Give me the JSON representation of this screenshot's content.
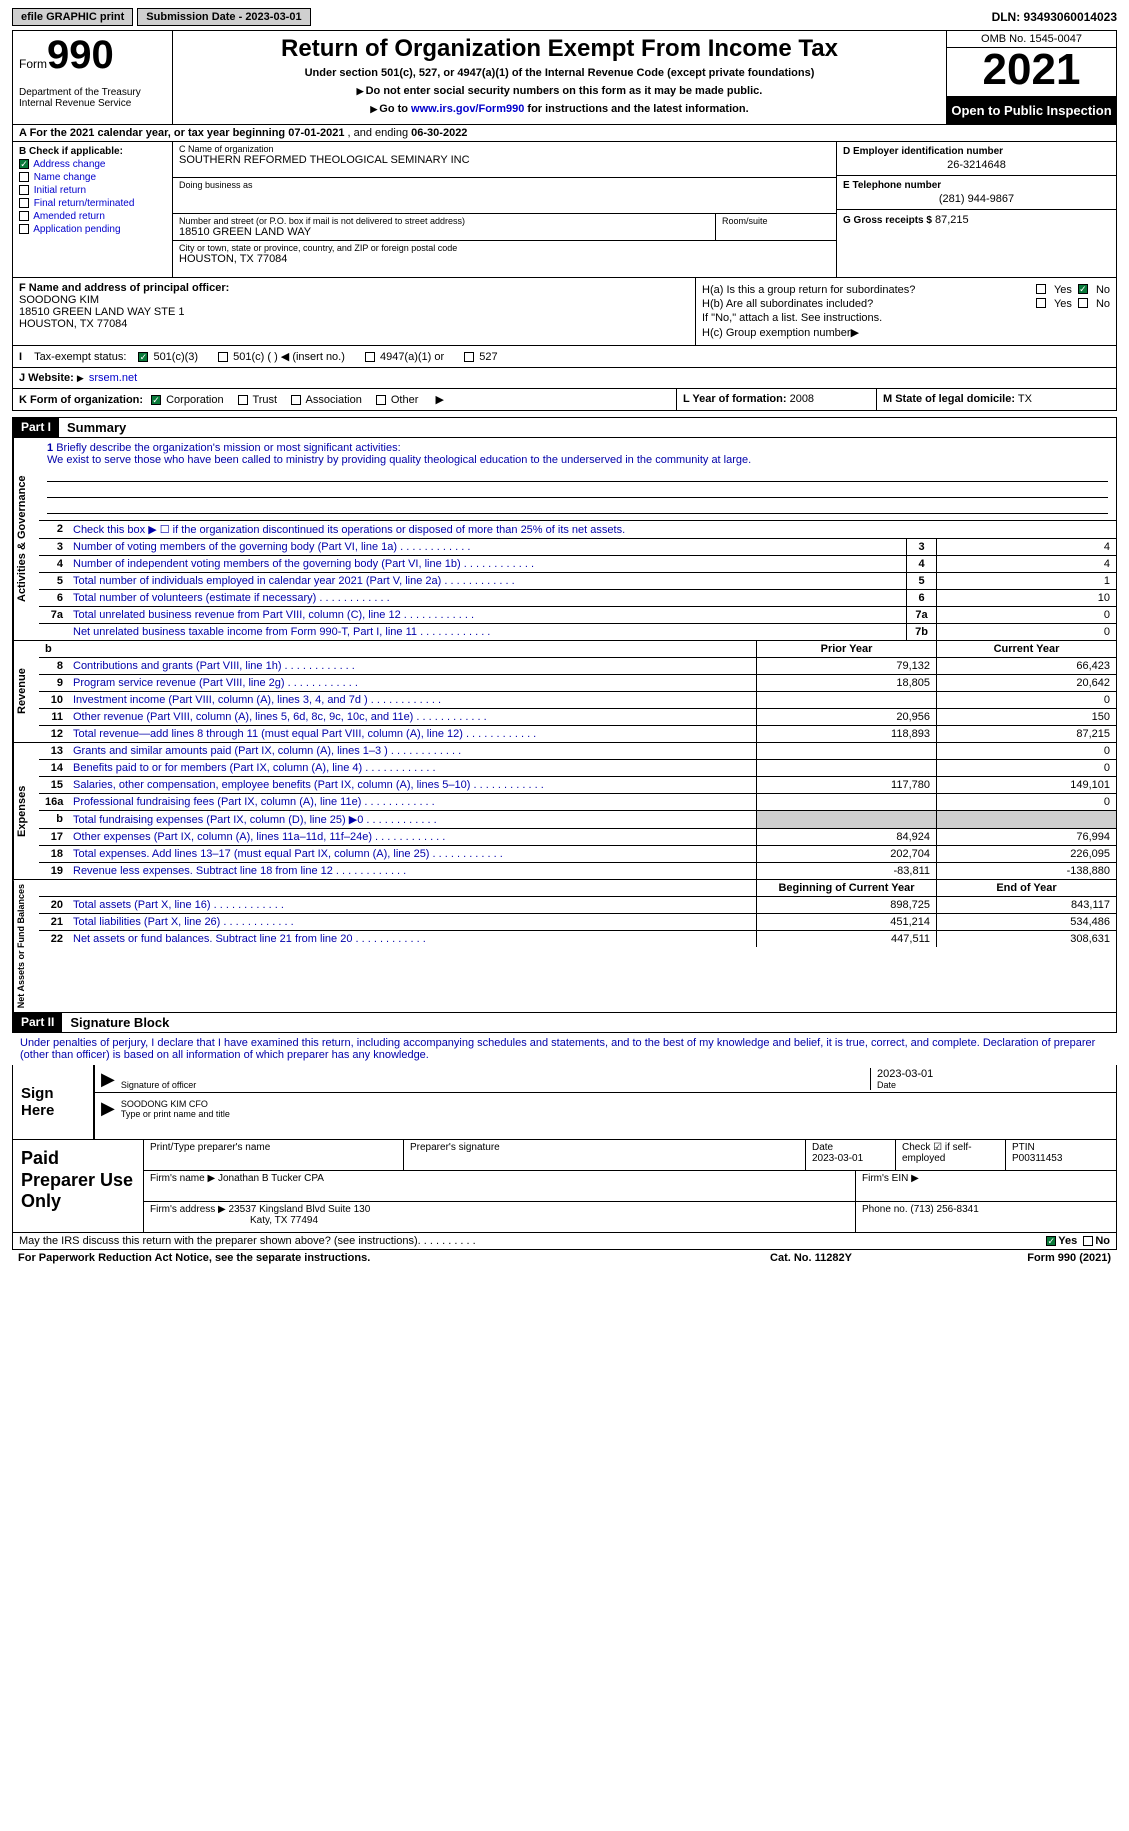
{
  "top": {
    "efile": "efile GRAPHIC print",
    "submission": "Submission Date - 2023-03-01",
    "dln": "DLN: 93493060014023"
  },
  "header": {
    "form_word": "Form",
    "form_num": "990",
    "dept": "Department of the Treasury\nInternal Revenue Service",
    "title": "Return of Organization Exempt From Income Tax",
    "subtitle": "Under section 501(c), 527, or 4947(a)(1) of the Internal Revenue Code (except private foundations)",
    "instr1": "Do not enter social security numbers on this form as it may be made public.",
    "instr2_pre": "Go to ",
    "instr2_link": "www.irs.gov/Form990",
    "instr2_post": " for instructions and the latest information.",
    "omb": "OMB No. 1545-0047",
    "year": "2021",
    "open": "Open to Public Inspection"
  },
  "a": {
    "text_pre": "A For the 2021 calendar year, or tax year beginning ",
    "begin": "07-01-2021",
    "mid": " , and ending ",
    "end": "06-30-2022"
  },
  "b": {
    "label": "B Check if applicable:",
    "items": [
      "Address change",
      "Name change",
      "Initial return",
      "Final return/terminated",
      "Amended return",
      "Application pending"
    ],
    "checked_idx": 0
  },
  "c": {
    "name_label": "C Name of organization",
    "name": "SOUTHERN REFORMED THEOLOGICAL SEMINARY INC",
    "dba_label": "Doing business as",
    "dba": "",
    "street_label": "Number and street (or P.O. box if mail is not delivered to street address)",
    "street": "18510 GREEN LAND WAY",
    "room_label": "Room/suite",
    "room": "",
    "city_label": "City or town, state or province, country, and ZIP or foreign postal code",
    "city": "HOUSTON, TX  77084"
  },
  "d": {
    "ein_label": "D Employer identification number",
    "ein": "26-3214648",
    "phone_label": "E Telephone number",
    "phone": "(281) 944-9867",
    "gross_label": "G Gross receipts $",
    "gross": "87,215"
  },
  "f": {
    "label": "F  Name and address of principal officer:",
    "name": "SOODONG KIM",
    "addr1": "18510 GREEN LAND WAY STE 1",
    "addr2": "HOUSTON, TX  77084"
  },
  "h": {
    "a_label": "H(a)  Is this a group return for subordinates?",
    "a_no": true,
    "b_label": "H(b)  Are all subordinates included?",
    "b_note": "If \"No,\" attach a list. See instructions.",
    "c_label": "H(c)  Group exemption number"
  },
  "i": {
    "label": "Tax-exempt status:",
    "opts": [
      "501(c)(3)",
      "501(c) (  ) ◀ (insert no.)",
      "4947(a)(1) or",
      "527"
    ],
    "checked_idx": 0
  },
  "j": {
    "label": "J   Website:",
    "val": "srsem.net"
  },
  "k": {
    "label": "K Form of organization:",
    "opts": [
      "Corporation",
      "Trust",
      "Association",
      "Other"
    ],
    "checked_idx": 0,
    "l_label": "L Year of formation:",
    "l_val": "2008",
    "m_label": "M State of legal domicile:",
    "m_val": "TX"
  },
  "part1": {
    "hdr": "Part I",
    "title": "Summary",
    "line1_label": "Briefly describe the organization's mission or most significant activities:",
    "mission": "We exist to serve those who have been called to ministry by providing quality theological education to the underserved in the community at large.",
    "line2": "Check this box ▶ ☐ if the organization discontinued its operations or disposed of more than 25% of its net assets.",
    "lines_ag": [
      {
        "n": "3",
        "t": "Number of voting members of the governing body (Part VI, line 1a)",
        "box": "3",
        "v": "4"
      },
      {
        "n": "4",
        "t": "Number of independent voting members of the governing body (Part VI, line 1b)",
        "box": "4",
        "v": "4"
      },
      {
        "n": "5",
        "t": "Total number of individuals employed in calendar year 2021 (Part V, line 2a)",
        "box": "5",
        "v": "1"
      },
      {
        "n": "6",
        "t": "Total number of volunteers (estimate if necessary)",
        "box": "6",
        "v": "10"
      },
      {
        "n": "7a",
        "t": "Total unrelated business revenue from Part VIII, column (C), line 12",
        "box": "7a",
        "v": "0"
      },
      {
        "n": "",
        "t": "Net unrelated business taxable income from Form 990-T, Part I, line 11",
        "box": "7b",
        "v": "0"
      }
    ],
    "col_prior": "Prior Year",
    "col_curr": "Current Year",
    "rev_lines": [
      {
        "n": "8",
        "t": "Contributions and grants (Part VIII, line 1h)",
        "p": "79,132",
        "c": "66,423"
      },
      {
        "n": "9",
        "t": "Program service revenue (Part VIII, line 2g)",
        "p": "18,805",
        "c": "20,642"
      },
      {
        "n": "10",
        "t": "Investment income (Part VIII, column (A), lines 3, 4, and 7d )",
        "p": "",
        "c": "0"
      },
      {
        "n": "11",
        "t": "Other revenue (Part VIII, column (A), lines 5, 6d, 8c, 9c, 10c, and 11e)",
        "p": "20,956",
        "c": "150"
      },
      {
        "n": "12",
        "t": "Total revenue—add lines 8 through 11 (must equal Part VIII, column (A), line 12)",
        "p": "118,893",
        "c": "87,215"
      }
    ],
    "exp_lines": [
      {
        "n": "13",
        "t": "Grants and similar amounts paid (Part IX, column (A), lines 1–3 )",
        "p": "",
        "c": "0"
      },
      {
        "n": "14",
        "t": "Benefits paid to or for members (Part IX, column (A), line 4)",
        "p": "",
        "c": "0"
      },
      {
        "n": "15",
        "t": "Salaries, other compensation, employee benefits (Part IX, column (A), lines 5–10)",
        "p": "117,780",
        "c": "149,101"
      },
      {
        "n": "16a",
        "t": "Professional fundraising fees (Part IX, column (A), line 11e)",
        "p": "",
        "c": "0"
      },
      {
        "n": "b",
        "t": "Total fundraising expenses (Part IX, column (D), line 25) ▶0",
        "p": "gray",
        "c": "gray"
      },
      {
        "n": "17",
        "t": "Other expenses (Part IX, column (A), lines 11a–11d, 11f–24e)",
        "p": "84,924",
        "c": "76,994"
      },
      {
        "n": "18",
        "t": "Total expenses. Add lines 13–17 (must equal Part IX, column (A), line 25)",
        "p": "202,704",
        "c": "226,095"
      },
      {
        "n": "19",
        "t": "Revenue less expenses. Subtract line 18 from line 12",
        "p": "-83,811",
        "c": "-138,880"
      }
    ],
    "col_begin": "Beginning of Current Year",
    "col_end": "End of Year",
    "na_lines": [
      {
        "n": "20",
        "t": "Total assets (Part X, line 16)",
        "p": "898,725",
        "c": "843,117"
      },
      {
        "n": "21",
        "t": "Total liabilities (Part X, line 26)",
        "p": "451,214",
        "c": "534,486"
      },
      {
        "n": "22",
        "t": "Net assets or fund balances. Subtract line 21 from line 20",
        "p": "447,511",
        "c": "308,631"
      }
    ],
    "vtab_ag": "Activities & Governance",
    "vtab_rev": "Revenue",
    "vtab_exp": "Expenses",
    "vtab_na": "Net Assets or Fund Balances"
  },
  "part2": {
    "hdr": "Part II",
    "title": "Signature Block",
    "text": "Under penalties of perjury, I declare that I have examined this return, including accompanying schedules and statements, and to the best of my knowledge and belief, it is true, correct, and complete. Declaration of preparer (other than officer) is based on all information of which preparer has any knowledge.",
    "sign_here": "Sign Here",
    "sig_officer_label": "Signature of officer",
    "sig_date": "2023-03-01",
    "date_label": "Date",
    "officer_name": "SOODONG KIM CFO",
    "officer_name_label": "Type or print name and title",
    "paid_prep": "Paid Preparer Use Only",
    "prep_name_label": "Print/Type preparer's name",
    "prep_sig_label": "Preparer's signature",
    "prep_date_label": "Date",
    "prep_date": "2023-03-01",
    "prep_check_label": "Check ☑ if self-employed",
    "ptin_label": "PTIN",
    "ptin": "P00311453",
    "firm_name_label": "Firm's name   ▶",
    "firm_name": "Jonathan B Tucker CPA",
    "firm_ein_label": "Firm's EIN ▶",
    "firm_addr_label": "Firm's address ▶",
    "firm_addr1": "23537 Kingsland Blvd Suite 130",
    "firm_addr2": "Katy, TX  77494",
    "firm_phone_label": "Phone no.",
    "firm_phone": "(713) 256-8341",
    "discuss": "May the IRS discuss this return with the preparer shown above? (see instructions)",
    "discuss_yes": true
  },
  "footer": {
    "pra": "For Paperwork Reduction Act Notice, see the separate instructions.",
    "cat": "Cat. No. 11282Y",
    "form": "Form 990 (2021)"
  }
}
